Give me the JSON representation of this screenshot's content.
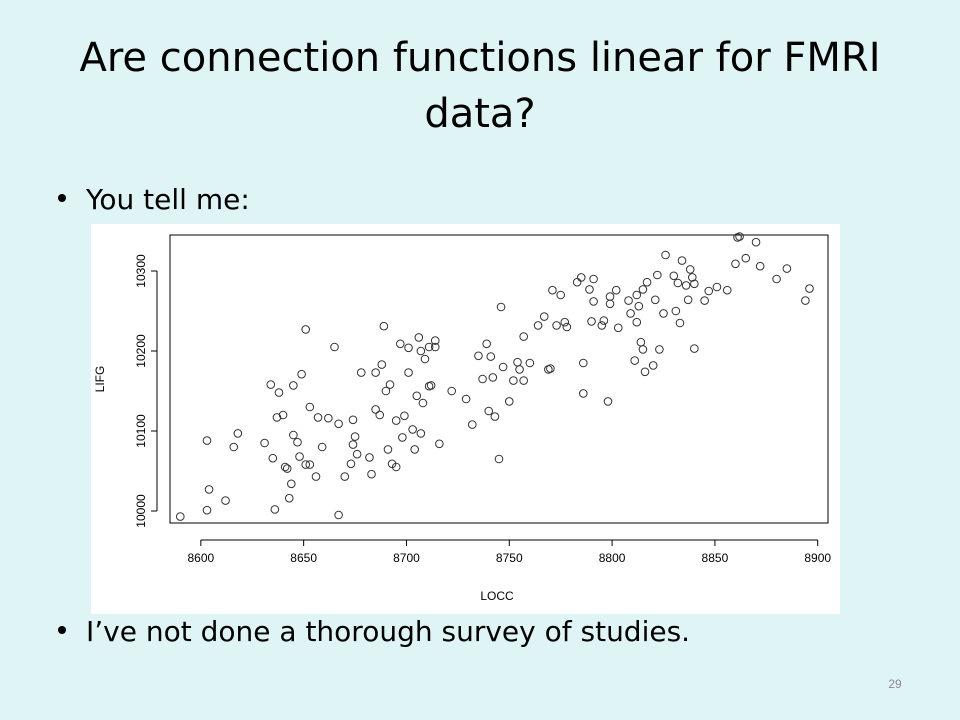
{
  "slide": {
    "title": "Are connection functions linear for FMRI data?",
    "bullets": [
      "You tell me:",
      "I’ve not done a thorough survey of studies."
    ],
    "page_number": "29"
  },
  "chart_data": {
    "type": "scatter",
    "title": "",
    "xlabel": "LOCC",
    "ylabel": "LIFG",
    "xlim": [
      8585,
      8905
    ],
    "ylim": [
      9985,
      10345
    ],
    "xticks": [
      8600,
      8650,
      8700,
      8750,
      8800,
      8850,
      8900
    ],
    "yticks": [
      10000,
      10100,
      10200,
      10300
    ],
    "marker": "open-circle",
    "grid": false,
    "legend": "none",
    "points": [
      [
        8590,
        9993
      ],
      [
        8603,
        10001
      ],
      [
        8603,
        10088
      ],
      [
        8604,
        10027
      ],
      [
        8612,
        10013
      ],
      [
        8616,
        10080
      ],
      [
        8618,
        10097
      ],
      [
        8631,
        10085
      ],
      [
        8634,
        10158
      ],
      [
        8635,
        10066
      ],
      [
        8636,
        10002
      ],
      [
        8637,
        10117
      ],
      [
        8638,
        10148
      ],
      [
        8640,
        10120
      ],
      [
        8641,
        10055
      ],
      [
        8642,
        10053
      ],
      [
        8643,
        10016
      ],
      [
        8644,
        10034
      ],
      [
        8645,
        10157
      ],
      [
        8645,
        10095
      ],
      [
        8647,
        10086
      ],
      [
        8648,
        10068
      ],
      [
        8649,
        10171
      ],
      [
        8651,
        10227
      ],
      [
        8651,
        10058
      ],
      [
        8653,
        10130
      ],
      [
        8653,
        10058
      ],
      [
        8656,
        10043
      ],
      [
        8657,
        10117
      ],
      [
        8659,
        10080
      ],
      [
        8662,
        10116
      ],
      [
        8665,
        10205
      ],
      [
        8667,
        10109
      ],
      [
        8667,
        9995
      ],
      [
        8670,
        10043
      ],
      [
        8673,
        10059
      ],
      [
        8674,
        10083
      ],
      [
        8674,
        10114
      ],
      [
        8675,
        10093
      ],
      [
        8676,
        10071
      ],
      [
        8678,
        10173
      ],
      [
        8682,
        10067
      ],
      [
        8683,
        10046
      ],
      [
        8685,
        10127
      ],
      [
        8685,
        10173
      ],
      [
        8687,
        10120
      ],
      [
        8688,
        10183
      ],
      [
        8689,
        10231
      ],
      [
        8690,
        10150
      ],
      [
        8691,
        10077
      ],
      [
        8692,
        10158
      ],
      [
        8693,
        10059
      ],
      [
        8695,
        10113
      ],
      [
        8695,
        10055
      ],
      [
        8697,
        10209
      ],
      [
        8698,
        10092
      ],
      [
        8699,
        10119
      ],
      [
        8701,
        10204
      ],
      [
        8701,
        10173
      ],
      [
        8703,
        10102
      ],
      [
        8704,
        10077
      ],
      [
        8705,
        10144
      ],
      [
        8706,
        10217
      ],
      [
        8707,
        10097
      ],
      [
        8707,
        10200
      ],
      [
        8708,
        10135
      ],
      [
        8709,
        10190
      ],
      [
        8711,
        10205
      ],
      [
        8711,
        10156
      ],
      [
        8712,
        10157
      ],
      [
        8714,
        10213
      ],
      [
        8714,
        10205
      ],
      [
        8716,
        10084
      ],
      [
        8722,
        10150
      ],
      [
        8729,
        10140
      ],
      [
        8732,
        10108
      ],
      [
        8735,
        10194
      ],
      [
        8737,
        10165
      ],
      [
        8739,
        10209
      ],
      [
        8740,
        10125
      ],
      [
        8741,
        10193
      ],
      [
        8742,
        10167
      ],
      [
        8743,
        10118
      ],
      [
        8745,
        10065
      ],
      [
        8746,
        10255
      ],
      [
        8747,
        10180
      ],
      [
        8750,
        10137
      ],
      [
        8752,
        10163
      ],
      [
        8754,
        10186
      ],
      [
        8755,
        10177
      ],
      [
        8757,
        10218
      ],
      [
        8757,
        10163
      ],
      [
        8760,
        10185
      ],
      [
        8764,
        10232
      ],
      [
        8767,
        10243
      ],
      [
        8769,
        10177
      ],
      [
        8770,
        10178
      ],
      [
        8771,
        10276
      ],
      [
        8773,
        10232
      ],
      [
        8775,
        10270
      ],
      [
        8777,
        10236
      ],
      [
        8778,
        10230
      ],
      [
        8783,
        10286
      ],
      [
        8785,
        10292
      ],
      [
        8786,
        10147
      ],
      [
        8786,
        10185
      ],
      [
        8789,
        10277
      ],
      [
        8790,
        10237
      ],
      [
        8791,
        10262
      ],
      [
        8791,
        10290
      ],
      [
        8795,
        10232
      ],
      [
        8796,
        10238
      ],
      [
        8798,
        10137
      ],
      [
        8799,
        10268
      ],
      [
        8799,
        10259
      ],
      [
        8802,
        10276
      ],
      [
        8803,
        10229
      ],
      [
        8808,
        10263
      ],
      [
        8809,
        10247
      ],
      [
        8811,
        10188
      ],
      [
        8812,
        10270
      ],
      [
        8812,
        10236
      ],
      [
        8813,
        10256
      ],
      [
        8814,
        10211
      ],
      [
        8815,
        10202
      ],
      [
        8815,
        10277
      ],
      [
        8816,
        10174
      ],
      [
        8817,
        10286
      ],
      [
        8820,
        10182
      ],
      [
        8821,
        10264
      ],
      [
        8822,
        10295
      ],
      [
        8823,
        10202
      ],
      [
        8825,
        10247
      ],
      [
        8826,
        10320
      ],
      [
        8830,
        10294
      ],
      [
        8831,
        10250
      ],
      [
        8832,
        10285
      ],
      [
        8833,
        10235
      ],
      [
        8834,
        10313
      ],
      [
        8836,
        10282
      ],
      [
        8837,
        10264
      ],
      [
        8838,
        10302
      ],
      [
        8839,
        10292
      ],
      [
        8840,
        10203
      ],
      [
        8840,
        10284
      ],
      [
        8845,
        10263
      ],
      [
        8847,
        10275
      ],
      [
        8851,
        10280
      ],
      [
        8856,
        10276
      ],
      [
        8860,
        10309
      ],
      [
        8861,
        10342
      ],
      [
        8862,
        10343
      ],
      [
        8865,
        10316
      ],
      [
        8870,
        10336
      ],
      [
        8872,
        10306
      ],
      [
        8880,
        10290
      ],
      [
        8885,
        10303
      ],
      [
        8894,
        10263
      ],
      [
        8896,
        10278
      ]
    ]
  }
}
